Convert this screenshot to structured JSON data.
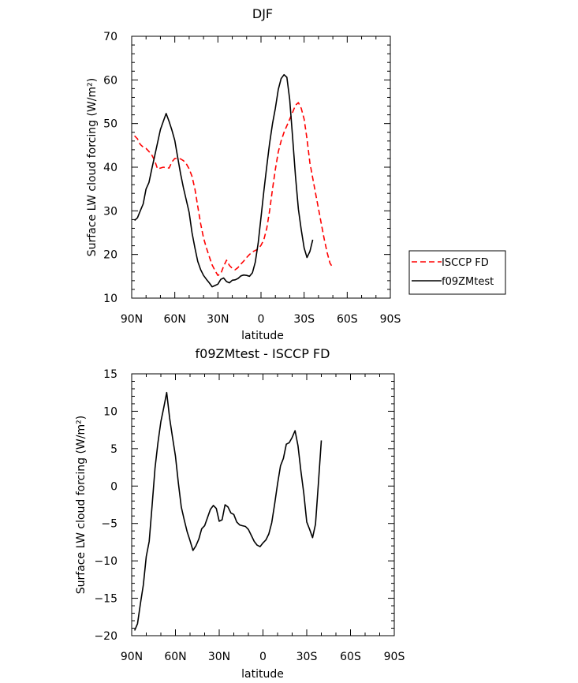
{
  "chart_data": [
    {
      "type": "line",
      "title": "DJF",
      "xlabel": "latitude",
      "ylabel": "Surface LW cloud forcing (W/m²)",
      "xlim": [
        90,
        -90
      ],
      "ylim": [
        10,
        70
      ],
      "xticks": [
        90,
        60,
        30,
        0,
        -30,
        -60,
        -90
      ],
      "xtick_labels": [
        "90N",
        "60N",
        "30N",
        "0",
        "30S",
        "60S",
        "90S"
      ],
      "yticks": [
        10,
        20,
        30,
        40,
        50,
        60,
        70
      ],
      "ytick_labels": [
        "10",
        "20",
        "30",
        "40",
        "50",
        "60",
        "70"
      ],
      "legend_position": "right",
      "series": [
        {
          "name": "ISCCP FD",
          "color": "#ff0000",
          "dash": "dashed",
          "points": [
            [
              88,
              47.2
            ],
            [
              86,
              46.5
            ],
            [
              84,
              45.2
            ],
            [
              82,
              44.6
            ],
            [
              80,
              44.3
            ],
            [
              78,
              43.6
            ],
            [
              76,
              42.8
            ],
            [
              74,
              41.5
            ],
            [
              72,
              39.6
            ],
            [
              70,
              39.8
            ],
            [
              68,
              40.0
            ],
            [
              66,
              39.9
            ],
            [
              64,
              39.8
            ],
            [
              62,
              41.2
            ],
            [
              60,
              42.0
            ],
            [
              58,
              42.0
            ],
            [
              56,
              41.9
            ],
            [
              54,
              41.5
            ],
            [
              52,
              40.8
            ],
            [
              50,
              39.6
            ],
            [
              48,
              37.9
            ],
            [
              46,
              35.0
            ],
            [
              44,
              31.0
            ],
            [
              42,
              27.0
            ],
            [
              40,
              23.8
            ],
            [
              38,
              21.5
            ],
            [
              36,
              19.5
            ],
            [
              34,
              17.6
            ],
            [
              32,
              16.3
            ],
            [
              30,
              15.2
            ],
            [
              28,
              15.6
            ],
            [
              26,
              17.3
            ],
            [
              24,
              18.7
            ],
            [
              22,
              17.5
            ],
            [
              20,
              16.8
            ],
            [
              18,
              16.5
            ],
            [
              16,
              17.0
            ],
            [
              14,
              17.8
            ],
            [
              12,
              18.5
            ],
            [
              10,
              19.3
            ],
            [
              8,
              20.0
            ],
            [
              6,
              20.6
            ],
            [
              4,
              20.9
            ],
            [
              2,
              21.3
            ],
            [
              0,
              22.1
            ],
            [
              -2,
              23.4
            ],
            [
              -4,
              26.0
            ],
            [
              -6,
              30.0
            ],
            [
              -8,
              35.0
            ],
            [
              -10,
              39.5
            ],
            [
              -12,
              43.5
            ],
            [
              -14,
              46.0
            ],
            [
              -16,
              48.0
            ],
            [
              -18,
              49.5
            ],
            [
              -20,
              51.0
            ],
            [
              -22,
              52.6
            ],
            [
              -24,
              54.2
            ],
            [
              -26,
              54.8
            ],
            [
              -28,
              53.5
            ],
            [
              -30,
              51.0
            ],
            [
              -32,
              46.5
            ],
            [
              -34,
              41.0
            ],
            [
              -36,
              37.5
            ],
            [
              -38,
              34.0
            ],
            [
              -40,
              30.5
            ],
            [
              -42,
              27.0
            ],
            [
              -44,
              23.5
            ],
            [
              -46,
              20.5
            ],
            [
              -48,
              18.0
            ],
            [
              -50,
              17.0
            ]
          ]
        },
        {
          "name": "f09ZMtest",
          "color": "#000000",
          "dash": "solid",
          "points": [
            [
              88,
              27.8
            ],
            [
              86,
              28.4
            ],
            [
              84,
              30.0
            ],
            [
              82,
              31.6
            ],
            [
              80,
              35.0
            ],
            [
              78,
              36.5
            ],
            [
              76,
              39.6
            ],
            [
              74,
              42.6
            ],
            [
              72,
              45.6
            ],
            [
              70,
              48.6
            ],
            [
              68,
              50.5
            ],
            [
              66,
              52.3
            ],
            [
              64,
              50.5
            ],
            [
              62,
              48.5
            ],
            [
              60,
              46.1
            ],
            [
              58,
              42.3
            ],
            [
              56,
              38.5
            ],
            [
              54,
              35.3
            ],
            [
              52,
              32.5
            ],
            [
              50,
              29.6
            ],
            [
              48,
              25.0
            ],
            [
              46,
              21.5
            ],
            [
              44,
              18.4
            ],
            [
              42,
              16.5
            ],
            [
              40,
              15.2
            ],
            [
              38,
              14.3
            ],
            [
              36,
              13.5
            ],
            [
              34,
              12.6
            ],
            [
              32,
              12.9
            ],
            [
              30,
              13.2
            ],
            [
              28,
              14.3
            ],
            [
              26,
              14.6
            ],
            [
              24,
              13.8
            ],
            [
              22,
              13.5
            ],
            [
              20,
              14.1
            ],
            [
              18,
              14.2
            ],
            [
              16,
              14.5
            ],
            [
              14,
              15.1
            ],
            [
              12,
              15.3
            ],
            [
              10,
              15.2
            ],
            [
              8,
              15.0
            ],
            [
              6,
              15.8
            ],
            [
              4,
              18.2
            ],
            [
              2,
              22.6
            ],
            [
              0,
              28.5
            ],
            [
              -2,
              34.5
            ],
            [
              -4,
              40.2
            ],
            [
              -6,
              45.5
            ],
            [
              -8,
              50.0
            ],
            [
              -10,
              53.5
            ],
            [
              -12,
              57.8
            ],
            [
              -14,
              60.3
            ],
            [
              -16,
              61.2
            ],
            [
              -18,
              60.6
            ],
            [
              -20,
              55.5
            ],
            [
              -22,
              46.8
            ],
            [
              -24,
              38.0
            ],
            [
              -26,
              30.4
            ],
            [
              -28,
              25.7
            ],
            [
              -30,
              21.5
            ],
            [
              -32,
              19.3
            ],
            [
              -34,
              20.7
            ],
            [
              -36,
              23.4
            ]
          ]
        }
      ]
    },
    {
      "type": "line",
      "title": "f09ZMtest - ISCCP FD",
      "xlabel": "latitude",
      "ylabel": "Surface LW cloud forcing (W/m²)",
      "xlim": [
        90,
        -90
      ],
      "ylim": [
        -20,
        15
      ],
      "xticks": [
        90,
        60,
        30,
        0,
        -30,
        -60,
        -90
      ],
      "xtick_labels": [
        "90N",
        "60N",
        "30N",
        "0",
        "30S",
        "60S",
        "90S"
      ],
      "yticks": [
        -20,
        -15,
        -10,
        -5,
        0,
        5,
        10,
        15
      ],
      "ytick_labels": [
        "−20",
        "−15",
        "−10",
        "−5",
        "0",
        "5",
        "10",
        "15"
      ],
      "series": [
        {
          "color": "#000000",
          "dash": "solid",
          "points": [
            [
              88,
              -19.3
            ],
            [
              86,
              -18.4
            ],
            [
              84,
              -15.7
            ],
            [
              82,
              -13.2
            ],
            [
              80,
              -9.4
            ],
            [
              78,
              -7.4
            ],
            [
              76,
              -2.6
            ],
            [
              74,
              2.4
            ],
            [
              72,
              5.8
            ],
            [
              70,
              8.6
            ],
            [
              68,
              10.5
            ],
            [
              66,
              12.5
            ],
            [
              64,
              9.1
            ],
            [
              62,
              6.5
            ],
            [
              60,
              4.0
            ],
            [
              58,
              0.4
            ],
            [
              56,
              -2.8
            ],
            [
              54,
              -4.5
            ],
            [
              52,
              -6.1
            ],
            [
              50,
              -7.3
            ],
            [
              48,
              -8.6
            ],
            [
              46,
              -8.0
            ],
            [
              44,
              -7.1
            ],
            [
              42,
              -5.7
            ],
            [
              40,
              -5.3
            ],
            [
              38,
              -4.2
            ],
            [
              36,
              -3.1
            ],
            [
              34,
              -2.6
            ],
            [
              32,
              -3.0
            ],
            [
              30,
              -4.7
            ],
            [
              28,
              -4.5
            ],
            [
              26,
              -2.5
            ],
            [
              24,
              -2.8
            ],
            [
              22,
              -3.6
            ],
            [
              20,
              -3.8
            ],
            [
              18,
              -4.8
            ],
            [
              16,
              -5.2
            ],
            [
              14,
              -5.3
            ],
            [
              12,
              -5.4
            ],
            [
              10,
              -5.8
            ],
            [
              8,
              -6.6
            ],
            [
              6,
              -7.4
            ],
            [
              4,
              -7.9
            ],
            [
              2,
              -8.1
            ],
            [
              0,
              -7.6
            ],
            [
              -2,
              -7.2
            ],
            [
              -4,
              -6.4
            ],
            [
              -6,
              -4.9
            ],
            [
              -8,
              -2.4
            ],
            [
              -10,
              0.3
            ],
            [
              -12,
              2.7
            ],
            [
              -14,
              3.7
            ],
            [
              -16,
              5.6
            ],
            [
              -18,
              5.8
            ],
            [
              -20,
              6.5
            ],
            [
              -22,
              7.4
            ],
            [
              -24,
              5.4
            ],
            [
              -26,
              2.0
            ],
            [
              -28,
              -1.0
            ],
            [
              -30,
              -4.8
            ],
            [
              -32,
              -5.8
            ],
            [
              -34,
              -6.9
            ],
            [
              -36,
              -5.1
            ],
            [
              -38,
              0.4
            ],
            [
              -40,
              6.1
            ]
          ]
        }
      ]
    }
  ]
}
